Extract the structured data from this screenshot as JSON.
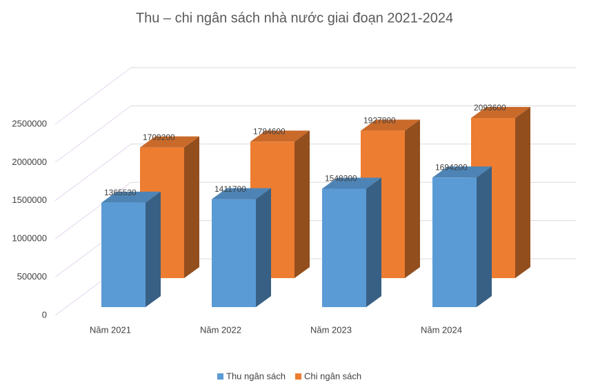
{
  "chart_data": {
    "type": "bar3d",
    "title": "Thu – chi ngân sách nhà nước giai đoạn 2021-2024",
    "categories": [
      "Năm 2021",
      "Năm 2022",
      "Năm 2023",
      "Năm 2024"
    ],
    "series": [
      {
        "name": "Thu  ngân sách",
        "color": "#5b9bd5",
        "values": [
          1365530,
          1411700,
          1548300,
          1694200
        ]
      },
      {
        "name": "Chi ngân sách",
        "color": "#ed7d31",
        "values": [
          1709200,
          1784600,
          1927800,
          2093600
        ]
      }
    ],
    "ylim": [
      0,
      2500000
    ],
    "yticks": [
      0,
      500000,
      1000000,
      1500000,
      2000000,
      2500000
    ],
    "grid": true,
    "legend": "bottom"
  }
}
